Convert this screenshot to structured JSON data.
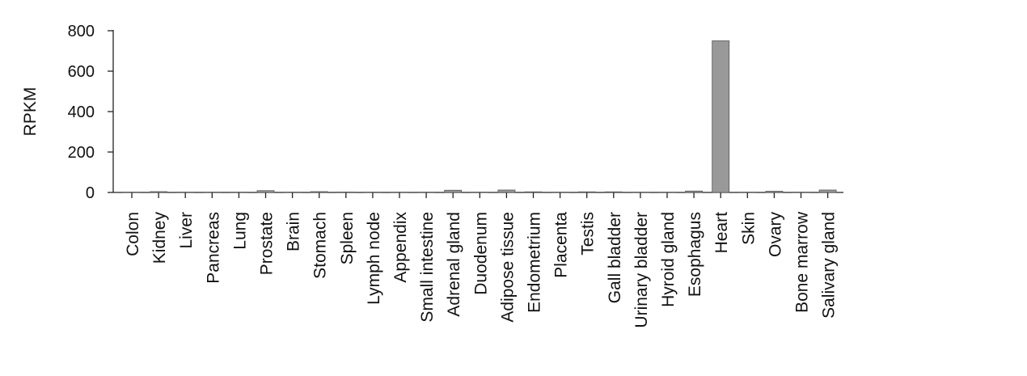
{
  "chart_data": {
    "type": "bar",
    "title": "",
    "xlabel": "",
    "ylabel": "RPKM",
    "ylim": [
      0,
      800
    ],
    "yticks": [
      0,
      200,
      400,
      600,
      800
    ],
    "grid": false,
    "legend": "none",
    "bar_color": "#999999",
    "categories": [
      "Colon",
      "Kidney",
      "Liver",
      "Pancreas",
      "Lung",
      "Prostate",
      "Brain",
      "Stomach",
      "Spleen",
      "Lymph node",
      "Appendix",
      "Small intestine",
      "Adrenal gland",
      "Duodenum",
      "Adipose tissue",
      "Endometrium",
      "Placenta",
      "Testis",
      "Gall bladder",
      "Urinary bladder",
      "Hyroid gland",
      "Esophagus",
      "Heart",
      "Skin",
      "Ovary",
      "Bone marrow",
      "Salivary gland"
    ],
    "values": [
      1,
      4,
      0.5,
      1,
      1,
      9,
      1,
      4,
      2,
      1,
      1,
      1,
      11,
      0.5,
      12,
      3,
      1,
      3,
      3,
      1,
      1,
      7,
      750,
      0.5,
      6,
      0.5,
      12
    ]
  }
}
